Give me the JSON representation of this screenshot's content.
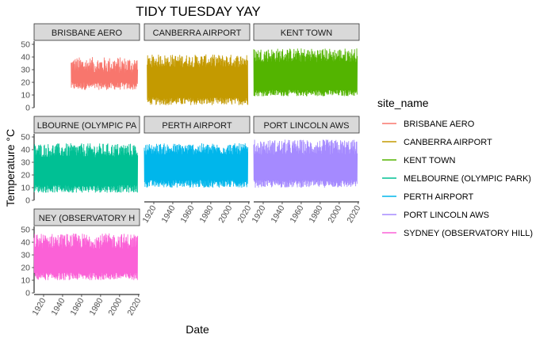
{
  "chart_data": {
    "type": "line",
    "title": "TIDY TUESDAY YAY",
    "xlabel": "Date",
    "ylabel": "Temperature °C",
    "xlim": [
      1910,
      2021
    ],
    "ylim": [
      0,
      50
    ],
    "x_ticks": [
      1920,
      1940,
      1960,
      1980,
      2000,
      2020
    ],
    "y_ticks": [
      0,
      10,
      20,
      30,
      40,
      50
    ],
    "grid": false,
    "legend": {
      "title": "site_name",
      "position": "right"
    },
    "facets": {
      "ncol": 3
    },
    "series": [
      {
        "name": "BRISBANE AERO",
        "strip_label": "BRISBANE AERO",
        "color": "#F8766D",
        "x_range": [
          1949,
          2019
        ],
        "low_range": [
          14,
          20
        ],
        "high_range": [
          27,
          40
        ]
      },
      {
        "name": "CANBERRA AIRPORT",
        "strip_label": "CANBERRA AIRPORT",
        "color": "#C49A00",
        "x_range": [
          1913,
          2019
        ],
        "low_range": [
          2,
          8
        ],
        "high_range": [
          32,
          42
        ]
      },
      {
        "name": "KENT TOWN",
        "strip_label": "KENT TOWN",
        "color": "#53B400",
        "x_range": [
          1910,
          2019
        ],
        "low_range": [
          9,
          14
        ],
        "high_range": [
          36,
          47
        ]
      },
      {
        "name": "MELBOURNE (OLYMPIC PARK)",
        "strip_label": "LBOURNE (OLYMPIC PA",
        "color": "#00C094",
        "x_range": [
          1910,
          2019
        ],
        "low_range": [
          6,
          12
        ],
        "high_range": [
          34,
          45
        ]
      },
      {
        "name": "PERTH AIRPORT",
        "strip_label": "PERTH AIRPORT",
        "color": "#00B6EB",
        "x_range": [
          1910,
          2019
        ],
        "low_range": [
          10,
          16
        ],
        "high_range": [
          36,
          45
        ]
      },
      {
        "name": "PORT LINCOLN AWS",
        "strip_label": "PORT LINCOLN AWS",
        "color": "#A58AFF",
        "x_range": [
          1910,
          2019
        ],
        "low_range": [
          10,
          16
        ],
        "high_range": [
          36,
          48
        ]
      },
      {
        "name": "SYDNEY (OBSERVATORY HILL)",
        "strip_label": "NEY (OBSERVATORY H",
        "color": "#FB61D7",
        "x_range": [
          1910,
          2019
        ],
        "low_range": [
          10,
          16
        ],
        "high_range": [
          35,
          47
        ]
      }
    ]
  }
}
